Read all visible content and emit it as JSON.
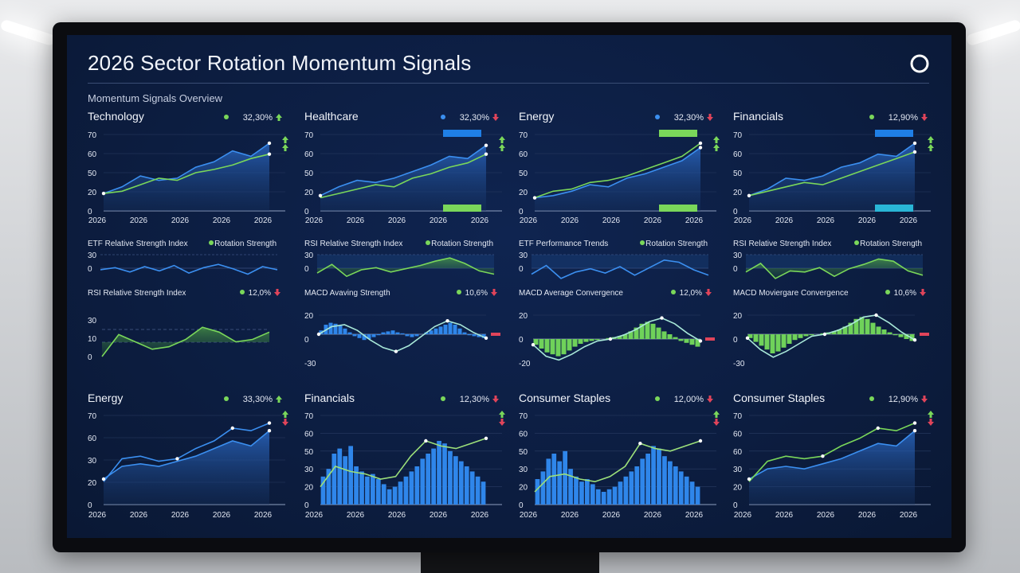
{
  "title": "2026 Sector Rotation Momentum Signals",
  "subtitle": "Momentum Signals Overview",
  "colors": {
    "blue": "#3b8ff0",
    "green": "#7ad75a",
    "red": "#e0445a",
    "text": "#e3e8f3"
  },
  "chart_data": [
    {
      "id": "tech",
      "type": "line",
      "title": "Technology",
      "badge": "32,30%",
      "badge_dot": "green",
      "arrows": [
        "up"
      ],
      "side_arrows": [
        "up",
        "up"
      ],
      "yticks": [
        "70",
        "60",
        "50",
        "20",
        "0"
      ],
      "ylim": [
        0,
        70
      ],
      "xticks": [
        "2026",
        "2026",
        "2026",
        "2026",
        "2026"
      ],
      "series": [
        {
          "values": [
            16,
            22,
            32,
            28,
            30,
            40,
            45,
            55,
            50,
            62
          ]
        },
        {
          "values": [
            16,
            18,
            24,
            30,
            28,
            35,
            38,
            42,
            48,
            52
          ]
        }
      ]
    },
    {
      "id": "health",
      "type": "line",
      "title": "Healthcare",
      "badge": "32,30%",
      "badge_dot": "blue",
      "arrows": [
        "down"
      ],
      "side_arrows": [
        "up",
        "up"
      ],
      "yticks": [
        "70",
        "60",
        "50",
        "20",
        "0"
      ],
      "ylim": [
        0,
        70
      ],
      "xticks": [
        "2026",
        "2026",
        "2026",
        "2026",
        "2026"
      ],
      "series": [
        {
          "values": [
            14,
            22,
            28,
            26,
            30,
            36,
            42,
            50,
            48,
            60
          ]
        },
        {
          "values": [
            12,
            16,
            20,
            24,
            22,
            30,
            34,
            40,
            44,
            52
          ]
        }
      ]
    },
    {
      "id": "energy_top",
      "type": "line",
      "title": "Energy",
      "badge": "32,30%",
      "badge_dot": "blue",
      "arrows": [
        "down"
      ],
      "side_arrows": [
        "up",
        "up"
      ],
      "yticks": [
        "70",
        "60",
        "50",
        "20",
        "0"
      ],
      "ylim": [
        0,
        70
      ],
      "xticks": [
        "2026",
        "2026",
        "2026",
        "2026",
        "2026"
      ],
      "series": [
        {
          "values": [
            12,
            14,
            18,
            24,
            22,
            30,
            34,
            40,
            46,
            58
          ]
        },
        {
          "values": [
            12,
            18,
            20,
            26,
            28,
            32,
            38,
            44,
            50,
            62
          ]
        }
      ]
    },
    {
      "id": "fin_top",
      "type": "line",
      "title": "Financials",
      "badge": "12,90%",
      "badge_dot": "green",
      "arrows": [
        "down"
      ],
      "side_arrows": [
        "up",
        "up"
      ],
      "yticks": [
        "70",
        "60",
        "50",
        "20",
        "0"
      ],
      "ylim": [
        0,
        70
      ],
      "xticks": [
        "2026",
        "2026",
        "2026",
        "2026",
        "2026"
      ],
      "series": [
        {
          "values": [
            14,
            20,
            30,
            28,
            32,
            40,
            44,
            52,
            50,
            62
          ]
        },
        {
          "values": [
            14,
            18,
            22,
            26,
            24,
            30,
            36,
            42,
            48,
            54
          ]
        }
      ]
    },
    {
      "id": "etf_rsi_1",
      "type": "line",
      "left_label": "ETF Relative Strength Index",
      "right_label": "Rotation Strength",
      "yticks": [
        "30",
        "0"
      ],
      "ylim": [
        -20,
        30
      ],
      "series": [
        {
          "values": [
            2,
            6,
            -2,
            8,
            0,
            10,
            -4,
            6,
            12,
            4,
            -6,
            8,
            2
          ]
        }
      ]
    },
    {
      "id": "rsi_rot_2",
      "type": "area",
      "left_label": "RSI Relative Strength Index",
      "right_label": "Rotation Strength",
      "yticks": [
        "30",
        "0"
      ],
      "ylim": [
        -20,
        30
      ],
      "series": [
        {
          "values": [
            -4,
            12,
            -10,
            2,
            6,
            -2,
            4,
            10,
            18,
            24,
            14,
            0,
            -6
          ]
        }
      ]
    },
    {
      "id": "etf_perf_3",
      "type": "line",
      "left_label": "ETF Performance Trends",
      "right_label": "Rotation Strength",
      "yticks": [
        "30",
        "0"
      ],
      "ylim": [
        -20,
        30
      ],
      "series": [
        {
          "values": [
            -6,
            10,
            -14,
            -2,
            4,
            -4,
            8,
            -8,
            6,
            20,
            16,
            2,
            -8
          ]
        }
      ]
    },
    {
      "id": "rsi_rot_4",
      "type": "area",
      "left_label": "RSI Relative Strength Index",
      "right_label": "Rotation Strength",
      "yticks": [
        "30",
        "0"
      ],
      "ylim": [
        -20,
        30
      ],
      "series": [
        {
          "values": [
            -2,
            14,
            -14,
            0,
            -2,
            6,
            -10,
            4,
            12,
            22,
            18,
            0,
            -8
          ]
        }
      ]
    },
    {
      "id": "rsi_idx_1",
      "type": "area",
      "title": "RSI Relative Strength Index",
      "badge": "12,0%",
      "badge_dot": "green",
      "arrows": [
        "down"
      ],
      "yticks": [
        "30",
        "10",
        "0"
      ],
      "ylim": [
        0,
        30
      ],
      "series": [
        {
          "values": [
            0,
            18,
            12,
            6,
            8,
            14,
            24,
            20,
            12,
            14,
            20
          ]
        }
      ]
    },
    {
      "id": "macd_1",
      "type": "histogram",
      "title": "MACD Avaving Strength",
      "badge": "10,6%",
      "badge_dot": "green",
      "arrows": [
        "down"
      ],
      "yticks": [
        "20",
        "0",
        "-30"
      ],
      "ylim": [
        -30,
        20
      ],
      "bars": [
        4,
        10,
        12,
        11,
        9,
        6,
        2,
        -2,
        -4,
        -6,
        -5,
        -3,
        -1,
        2,
        3,
        4,
        2,
        1,
        -2,
        -3,
        -2,
        0,
        2,
        4,
        6,
        8,
        10,
        12,
        10,
        6,
        2,
        -1,
        -2,
        -3,
        -4
      ],
      "series": [
        {
          "values": [
            0,
            8,
            10,
            4,
            -6,
            -14,
            -18,
            -12,
            -2,
            8,
            14,
            10,
            2,
            -4
          ]
        }
      ]
    },
    {
      "id": "macd_2",
      "type": "histogram",
      "title": "MACD Average Convergence",
      "badge": "12,0%",
      "badge_dot": "green",
      "arrows": [
        "down"
      ],
      "yticks": [
        "20",
        "0",
        "-20"
      ],
      "ylim": [
        -25,
        25
      ],
      "bars": [
        -6,
        -10,
        -14,
        -16,
        -18,
        -16,
        -12,
        -8,
        -5,
        -3,
        -2,
        -1,
        0,
        1,
        2,
        3,
        5,
        8,
        12,
        16,
        18,
        16,
        12,
        8,
        5,
        2,
        -2,
        -4,
        -6,
        -8
      ],
      "series": [
        {
          "values": [
            -6,
            -18,
            -22,
            -16,
            -8,
            -2,
            0,
            4,
            10,
            18,
            22,
            16,
            6,
            -2
          ]
        }
      ]
    },
    {
      "id": "macd_3",
      "type": "histogram",
      "title": "MACD Moviergare Convergence",
      "badge": "10,6%",
      "badge_dot": "green",
      "arrows": [
        "down"
      ],
      "yticks": [
        "20",
        "0",
        "-30"
      ],
      "ylim": [
        -30,
        20
      ],
      "bars": [
        -4,
        -8,
        -12,
        -16,
        -20,
        -18,
        -14,
        -10,
        -6,
        -4,
        -2,
        -1,
        0,
        1,
        2,
        3,
        5,
        8,
        12,
        16,
        18,
        16,
        12,
        8,
        5,
        2,
        -1,
        -3,
        -5,
        -7
      ],
      "series": [
        {
          "values": [
            -4,
            -16,
            -24,
            -18,
            -10,
            -2,
            0,
            4,
            10,
            18,
            20,
            12,
            2,
            -6
          ]
        }
      ]
    },
    {
      "id": "energy_bot",
      "type": "area",
      "title": "Energy",
      "badge": "33,30%",
      "badge_dot": "green",
      "arrows": [
        "up"
      ],
      "side_arrows": [
        "up",
        "down"
      ],
      "yticks": [
        "70",
        "60",
        "30",
        "20",
        "0"
      ],
      "ylim": [
        0,
        70
      ],
      "xticks": [
        "2026",
        "2026",
        "2026",
        "2026",
        "2026"
      ],
      "series": [
        {
          "values": [
            20,
            30,
            32,
            30,
            34,
            38,
            44,
            50,
            46,
            58
          ]
        },
        {
          "values": [
            18,
            36,
            38,
            34,
            36,
            44,
            50,
            60,
            58,
            64
          ]
        }
      ]
    },
    {
      "id": "fin_bot",
      "type": "histogram_line",
      "title": "Financials",
      "badge": "12,30%",
      "badge_dot": "green",
      "arrows": [
        "down"
      ],
      "side_arrows": [
        "up",
        "down"
      ],
      "yticks": [
        "70",
        "60",
        "50",
        "30",
        "20",
        "0"
      ],
      "ylim": [
        0,
        70
      ],
      "xticks": [
        "2026",
        "2026",
        "2026",
        "2026",
        "2026"
      ],
      "bars": [
        22,
        28,
        40,
        44,
        38,
        46,
        30,
        26,
        22,
        24,
        20,
        16,
        12,
        14,
        18,
        22,
        26,
        30,
        36,
        40,
        44,
        50,
        48,
        42,
        38,
        34,
        30,
        26,
        22,
        18
      ],
      "series": [
        {
          "values": [
            14,
            30,
            26,
            24,
            20,
            22,
            38,
            50,
            46,
            44,
            48,
            52
          ]
        }
      ]
    },
    {
      "id": "staples_1",
      "type": "histogram_line",
      "title": "Consumer Staples",
      "badge": "12,00%",
      "badge_dot": "green",
      "arrows": [
        "down"
      ],
      "side_arrows": [
        "up",
        "down"
      ],
      "yticks": [
        "70",
        "60",
        "50",
        "30",
        "20",
        "0"
      ],
      "ylim": [
        0,
        70
      ],
      "xticks": [
        "2026",
        "2026",
        "2026",
        "2026",
        "2026"
      ],
      "bars": [
        20,
        26,
        36,
        40,
        34,
        42,
        28,
        22,
        18,
        20,
        16,
        12,
        10,
        12,
        14,
        18,
        22,
        26,
        30,
        36,
        40,
        46,
        44,
        38,
        34,
        30,
        26,
        22,
        18,
        14
      ],
      "series": [
        {
          "values": [
            10,
            22,
            24,
            20,
            18,
            22,
            30,
            48,
            44,
            42,
            46,
            50
          ]
        }
      ]
    },
    {
      "id": "staples_2",
      "type": "area",
      "title": "Consumer Staples",
      "badge": "12,90%",
      "badge_dot": "green",
      "arrows": [
        "down"
      ],
      "side_arrows": [
        "up",
        "down"
      ],
      "yticks": [
        "70",
        "60",
        "60",
        "30",
        "20",
        "0"
      ],
      "ylim": [
        0,
        70
      ],
      "xticks": [
        "2026",
        "2026",
        "2026",
        "2026",
        "2026"
      ],
      "series": [
        {
          "values": [
            20,
            28,
            30,
            28,
            32,
            36,
            42,
            48,
            46,
            58
          ]
        },
        {
          "values": [
            18,
            34,
            38,
            36,
            38,
            46,
            52,
            60,
            58,
            64
          ]
        }
      ]
    }
  ]
}
